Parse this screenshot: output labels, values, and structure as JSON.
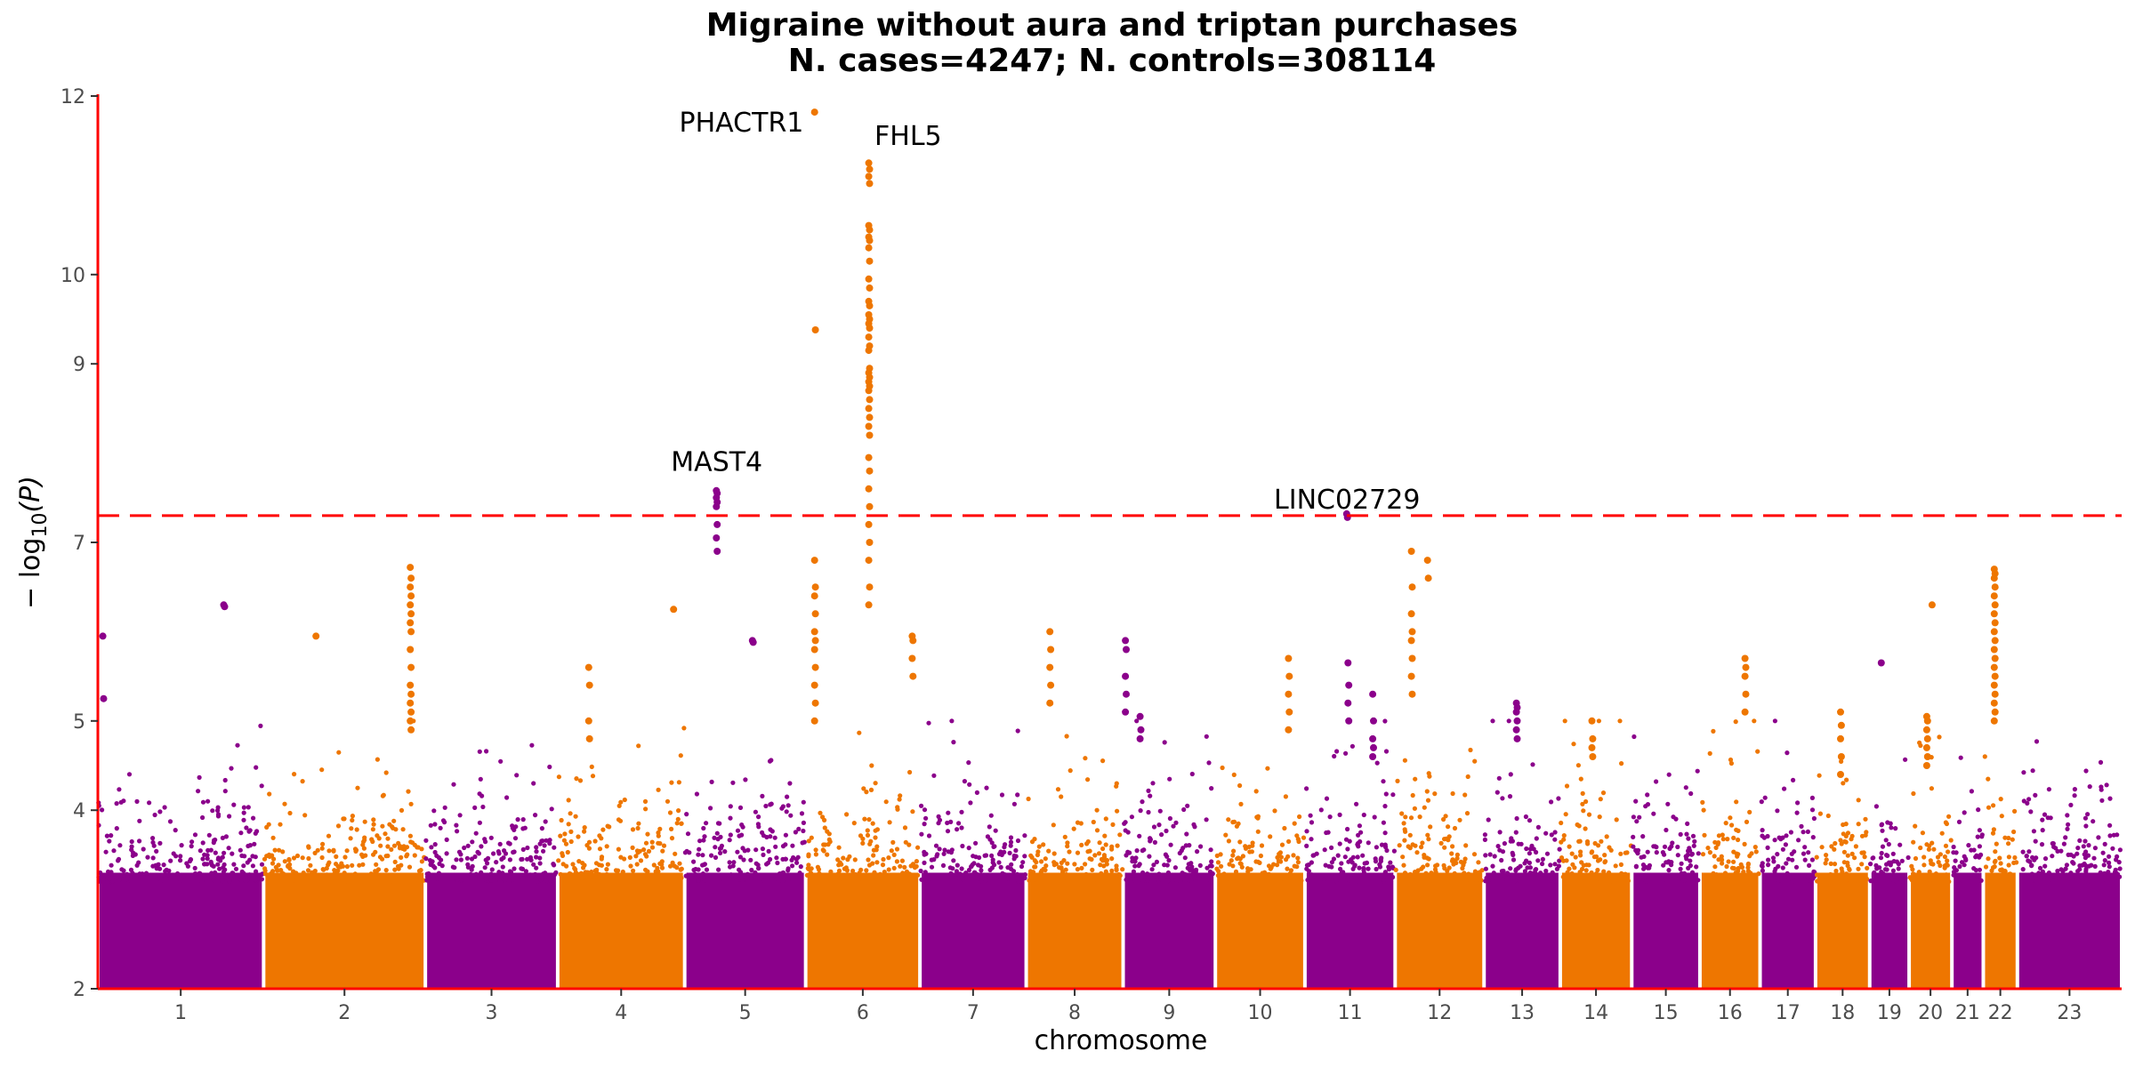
{
  "chart_data": {
    "type": "scatter",
    "title": [
      "Migraine without aura and triptan purchases",
      "N. cases=4247; N. controls=308114"
    ],
    "xlabel": "chromosome",
    "ylabel": "-log10(P)",
    "ylabel_parts": {
      "prefix": "− log",
      "sub": "10",
      "suffix": "(P)"
    },
    "y_ticks": [
      2,
      4,
      5,
      7,
      9,
      10,
      12
    ],
    "ylim": [
      2,
      12
    ],
    "significance_threshold": 7.3,
    "colors": {
      "odd": "#8B008B",
      "even": "#EE7600",
      "threshold": "#FF0000",
      "axis": "#FF0000"
    },
    "chromosomes": [
      {
        "label": "1",
        "xmin": 0,
        "xmax": 248
      },
      {
        "label": "2",
        "xmin": 248,
        "xmax": 490
      },
      {
        "label": "3",
        "xmin": 490,
        "xmax": 688
      },
      {
        "label": "4",
        "xmin": 688,
        "xmax": 878
      },
      {
        "label": "5",
        "xmin": 878,
        "xmax": 1059
      },
      {
        "label": "6",
        "xmin": 1059,
        "xmax": 1230
      },
      {
        "label": "7",
        "xmin": 1230,
        "xmax": 1389
      },
      {
        "label": "8",
        "xmin": 1389,
        "xmax": 1534
      },
      {
        "label": "9",
        "xmin": 1534,
        "xmax": 1672
      },
      {
        "label": "10",
        "xmin": 1672,
        "xmax": 1806
      },
      {
        "label": "11",
        "xmin": 1806,
        "xmax": 1941
      },
      {
        "label": "12",
        "xmin": 1941,
        "xmax": 2074
      },
      {
        "label": "13",
        "xmin": 2074,
        "xmax": 2188
      },
      {
        "label": "14",
        "xmin": 2188,
        "xmax": 2295
      },
      {
        "label": "15",
        "xmin": 2295,
        "xmax": 2397
      },
      {
        "label": "16",
        "xmin": 2397,
        "xmax": 2487
      },
      {
        "label": "17",
        "xmin": 2487,
        "xmax": 2570
      },
      {
        "label": "18",
        "xmin": 2570,
        "xmax": 2651
      },
      {
        "label": "19",
        "xmin": 2651,
        "xmax": 2710
      },
      {
        "label": "20",
        "xmin": 2710,
        "xmax": 2774
      },
      {
        "label": "21",
        "xmin": 2774,
        "xmax": 2821
      },
      {
        "label": "22",
        "xmin": 2821,
        "xmax": 2872
      },
      {
        "label": "23",
        "xmin": 2872,
        "xmax": 3028
      }
    ],
    "x_range": [
      0,
      3028
    ],
    "annotations": [
      {
        "label": "PHACTR1",
        "chr": "6",
        "x": 1073,
        "y": 11.75,
        "anchor": "end",
        "lx": 1056,
        "ly": 11.6
      },
      {
        "label": "FHL5",
        "chr": "6",
        "x": 1154,
        "y": 11.25,
        "anchor": "start",
        "lx": 1162,
        "ly": 11.45
      },
      {
        "label": "MAST4",
        "chr": "5",
        "x": 926,
        "y": 7.5,
        "anchor": "middle",
        "lx": 926,
        "ly": 7.8
      },
      {
        "label": "LINC02729",
        "chr": "11",
        "x": 1869,
        "y": 7.3,
        "anchor": "middle",
        "lx": 1869,
        "ly": 7.38
      }
    ],
    "peaks": [
      {
        "x": 1073,
        "values": [
          11.82,
          9.38
        ]
      },
      {
        "x": 1154,
        "values": [
          11.25,
          11.18,
          11.1,
          11.02,
          10.55,
          10.5,
          10.42,
          10.38,
          10.3,
          10.15,
          9.95,
          9.85,
          9.7,
          9.65,
          9.55,
          9.5,
          9.45,
          9.4,
          9.3,
          9.2,
          9.15,
          8.95,
          8.9,
          8.85,
          8.8,
          8.75,
          8.7,
          8.6,
          8.5,
          8.4,
          8.3,
          8.2,
          7.95,
          7.8,
          7.6,
          7.4,
          7.2,
          7.0,
          6.8,
          6.5,
          6.3
        ]
      },
      {
        "x": 926,
        "values": [
          7.58,
          7.55,
          7.5,
          7.45,
          7.4,
          7.2,
          7.05,
          6.9
        ]
      },
      {
        "x": 1869,
        "values": [
          7.32,
          7.28
        ]
      },
      {
        "x": 1966,
        "values": [
          6.9,
          6.5,
          6.2,
          6.0,
          5.9,
          5.7,
          5.5,
          5.3
        ]
      },
      {
        "x": 1990,
        "values": [
          6.8,
          6.6
        ]
      },
      {
        "x": 468,
        "values": [
          6.72,
          6.6,
          6.5,
          6.4,
          6.3,
          6.2,
          6.1,
          6.0,
          5.8,
          5.6,
          5.4,
          5.3,
          5.2,
          5.1,
          5.0,
          4.9
        ]
      },
      {
        "x": 2838,
        "values": [
          6.7,
          6.65,
          6.6,
          6.5,
          6.4,
          6.3,
          6.2,
          6.1,
          6.0,
          5.9,
          5.8,
          5.7,
          5.6,
          5.5,
          5.4,
          5.3,
          5.2,
          5.1,
          5.0
        ]
      },
      {
        "x": 1073,
        "values": [
          6.8,
          6.5,
          6.4,
          6.2,
          6.0,
          5.9,
          5.8,
          5.6,
          5.4,
          5.2,
          5.0
        ]
      },
      {
        "x": 189,
        "values": [
          6.3,
          6.28
        ]
      },
      {
        "x": 2745,
        "values": [
          6.3
        ]
      },
      {
        "x": 862,
        "values": [
          6.25
        ]
      },
      {
        "x": 1425,
        "values": [
          6.0,
          5.8,
          5.6,
          5.4,
          5.2
        ]
      },
      {
        "x": 1538,
        "values": [
          5.9,
          5.8,
          5.5,
          5.3,
          5.1
        ]
      },
      {
        "x": 1782,
        "values": [
          5.7,
          5.5,
          5.3,
          5.1,
          4.9
        ]
      },
      {
        "x": 2465,
        "values": [
          5.7,
          5.6,
          5.5,
          5.3,
          5.1
        ]
      },
      {
        "x": 2669,
        "values": [
          5.65
        ]
      },
      {
        "x": 2123,
        "values": [
          5.2,
          5.15,
          5.1,
          5.0,
          4.9,
          4.8
        ]
      },
      {
        "x": 2737,
        "values": [
          5.05,
          5.0,
          4.9,
          4.8,
          4.7,
          4.6,
          4.5
        ]
      },
      {
        "x": 980,
        "values": [
          5.9,
          5.88
        ]
      },
      {
        "x": 1219,
        "values": [
          5.95,
          5.9,
          5.7,
          5.5
        ]
      },
      {
        "x": 2236,
        "values": [
          5.0,
          4.8,
          4.7,
          4.6
        ]
      },
      {
        "x": 1908,
        "values": [
          5.3,
          5.0,
          4.8,
          4.7,
          4.6
        ]
      },
      {
        "x": 1871,
        "values": [
          5.65,
          5.4,
          5.2,
          5.0
        ]
      },
      {
        "x": 8,
        "values": [
          5.95,
          5.25
        ]
      },
      {
        "x": 327,
        "values": [
          5.95
        ]
      },
      {
        "x": 735,
        "values": [
          5.6,
          5.4,
          5.0,
          4.8
        ]
      },
      {
        "x": 2608,
        "values": [
          5.1,
          4.95,
          4.8,
          4.6,
          4.4
        ]
      },
      {
        "x": 1560,
        "values": [
          5.05,
          4.9,
          4.8
        ]
      }
    ],
    "bulk": {
      "base": 2.0,
      "seed": 7
    }
  }
}
